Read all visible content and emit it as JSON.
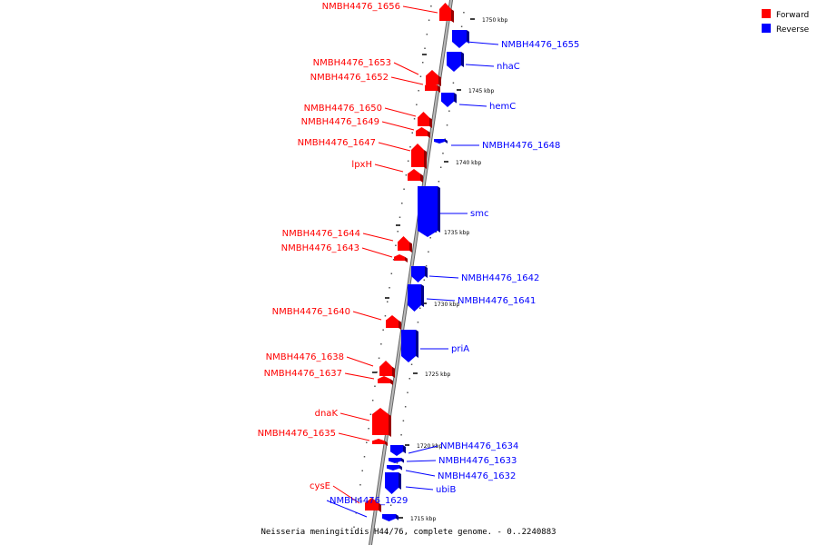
{
  "legend": {
    "forward_label": "Forward",
    "reverse_label": "Reverse",
    "forward_color": "#ff0000",
    "reverse_color": "#0000ff"
  },
  "caption": "Neisseria meningitidis H44/76, complete genome. - 0..2240883",
  "ticks": [
    "1750 kbp",
    "1745 kbp",
    "1740 kbp",
    "1735 kbp",
    "1730 kbp",
    "1725 kbp",
    "1720 kbp",
    "1715 kbp"
  ],
  "genes": [
    {
      "name": "NMBH4476_1656",
      "strand": "forward"
    },
    {
      "name": "NMBH4476_1655",
      "strand": "reverse"
    },
    {
      "name": "nhaC",
      "strand": "reverse"
    },
    {
      "name": "NMBH4476_1653",
      "strand": "forward"
    },
    {
      "name": "NMBH4476_1652",
      "strand": "forward"
    },
    {
      "name": "hemC",
      "strand": "reverse"
    },
    {
      "name": "NMBH4476_1650",
      "strand": "forward"
    },
    {
      "name": "NMBH4476_1649",
      "strand": "forward"
    },
    {
      "name": "NMBH4476_1648",
      "strand": "reverse"
    },
    {
      "name": "NMBH4476_1647",
      "strand": "forward"
    },
    {
      "name": "lpxH",
      "strand": "forward"
    },
    {
      "name": "smc",
      "strand": "reverse"
    },
    {
      "name": "NMBH4476_1644",
      "strand": "forward"
    },
    {
      "name": "NMBH4476_1643",
      "strand": "forward"
    },
    {
      "name": "NMBH4476_1642",
      "strand": "reverse"
    },
    {
      "name": "NMBH4476_1641",
      "strand": "reverse"
    },
    {
      "name": "NMBH4476_1640",
      "strand": "forward"
    },
    {
      "name": "priA",
      "strand": "reverse"
    },
    {
      "name": "NMBH4476_1638",
      "strand": "forward"
    },
    {
      "name": "NMBH4476_1637",
      "strand": "forward"
    },
    {
      "name": "dnaK",
      "strand": "forward"
    },
    {
      "name": "NMBH4476_1635",
      "strand": "forward"
    },
    {
      "name": "NMBH4476_1634",
      "strand": "reverse"
    },
    {
      "name": "NMBH4476_1633",
      "strand": "reverse"
    },
    {
      "name": "NMBH4476_1632",
      "strand": "reverse"
    },
    {
      "name": "ubiB",
      "strand": "reverse"
    },
    {
      "name": "cysE",
      "strand": "forward"
    },
    {
      "name": "NMBH4476_1629",
      "strand": "reverse"
    }
  ]
}
